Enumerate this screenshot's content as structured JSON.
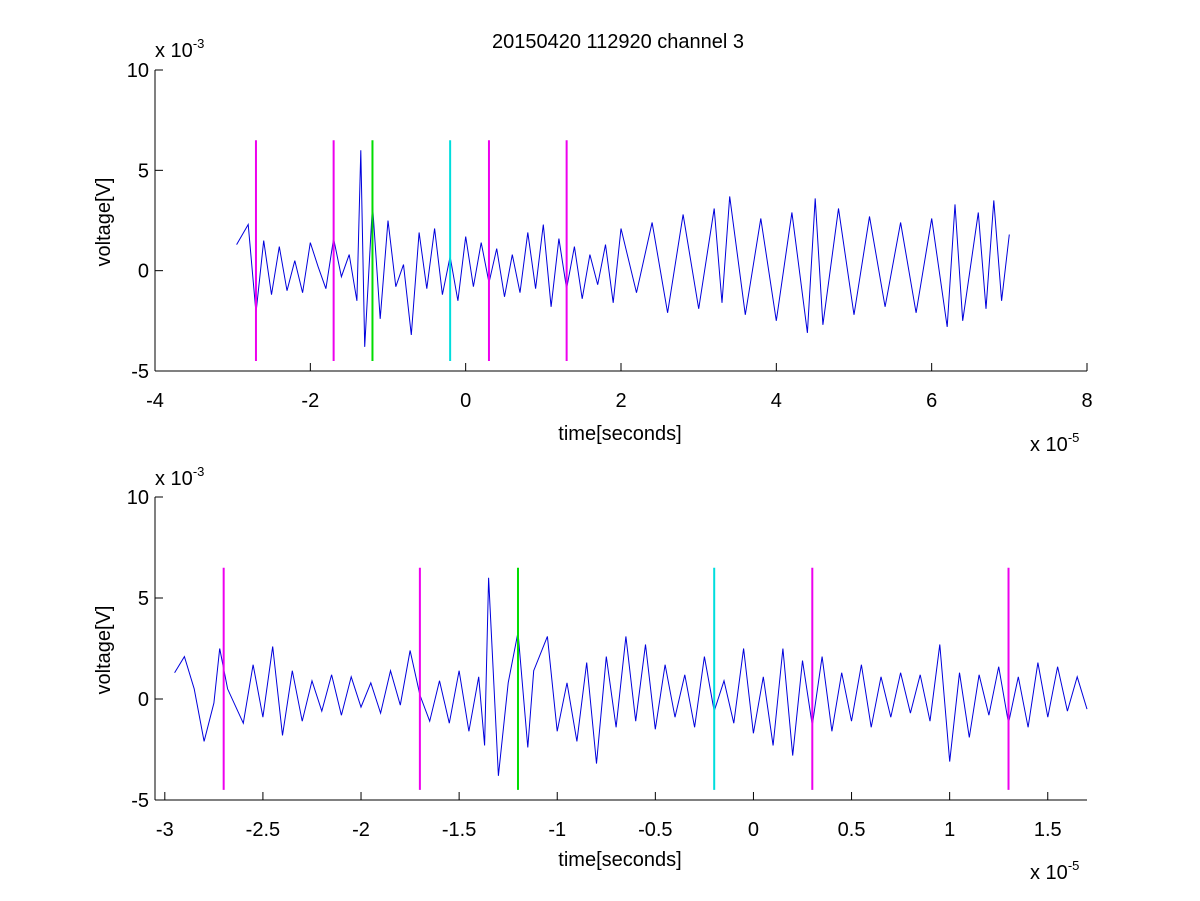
{
  "figure": {
    "title": "20150420 112920 channel 3"
  },
  "chart_data": [
    {
      "type": "line",
      "title": "20150420 112920 channel 3",
      "xlabel": "time[seconds]",
      "ylabel": "voltage[V]",
      "x_exponent_label": "x 10",
      "x_exponent": "-5",
      "y_exponent_label": "x 10",
      "y_exponent": "-3",
      "xlim": [
        -4e-05,
        8e-05
      ],
      "ylim": [
        -0.005,
        0.01
      ],
      "xticks": [
        -4e-05,
        -2e-05,
        0,
        2e-05,
        4e-05,
        6e-05,
        8e-05
      ],
      "xtick_labels": [
        "-4",
        "-2",
        "0",
        "2",
        "4",
        "6",
        "8"
      ],
      "yticks": [
        -0.005,
        0,
        0.005,
        0.01
      ],
      "ytick_labels": [
        "-5",
        "0",
        "5",
        "10"
      ],
      "grid": false,
      "series": [
        {
          "color": "#0000dd",
          "x": [
            -2.95e-05,
            -2.8e-05,
            -2.7e-05,
            -2.6e-05,
            -2.5e-05,
            -2.4e-05,
            -2.3e-05,
            -2.2e-05,
            -2.1e-05,
            -2e-05,
            -1.9e-05,
            -1.8e-05,
            -1.7e-05,
            -1.6e-05,
            -1.5e-05,
            -1.4e-05,
            -1.35e-05,
            -1.3e-05,
            -1.2e-05,
            -1.1e-05,
            -1e-05,
            -9e-06,
            -8e-06,
            -7e-06,
            -6e-06,
            -5e-06,
            -4e-06,
            -3e-06,
            -2e-06,
            -1e-06,
            0,
            1e-06,
            2e-06,
            3e-06,
            4e-06,
            5e-06,
            6e-06,
            7e-06,
            8e-06,
            9e-06,
            1e-05,
            1.1e-05,
            1.2e-05,
            1.3e-05,
            1.4e-05,
            1.5e-05,
            1.6e-05,
            1.7e-05,
            1.8e-05,
            1.9e-05,
            2e-05,
            2.2e-05,
            2.4e-05,
            2.6e-05,
            2.8e-05,
            3e-05,
            3.2e-05,
            3.3e-05,
            3.4e-05,
            3.6e-05,
            3.8e-05,
            4e-05,
            4.2e-05,
            4.4e-05,
            4.5e-05,
            4.6e-05,
            4.8e-05,
            5e-05,
            5.2e-05,
            5.4e-05,
            5.6e-05,
            5.8e-05,
            6e-05,
            6.2e-05,
            6.3e-05,
            6.4e-05,
            6.6e-05,
            6.7e-05,
            6.8e-05,
            6.9e-05,
            7e-05
          ],
          "y": [
            0.0013,
            0.0023,
            -0.0021,
            0.0015,
            -0.0012,
            0.0012,
            -0.001,
            0.0005,
            -0.0011,
            0.0014,
            0.0002,
            -0.0009,
            0.0016,
            -0.0003,
            0.0008,
            -0.0015,
            0.006,
            -0.0038,
            0.0033,
            -0.0024,
            0.0025,
            -0.0008,
            0.0003,
            -0.0032,
            0.0019,
            -0.0009,
            0.0021,
            -0.0012,
            0.0007,
            -0.0015,
            0.0017,
            -0.0008,
            0.0014,
            -0.0006,
            0.0011,
            -0.0013,
            0.0008,
            -0.0011,
            0.0019,
            -0.0009,
            0.0023,
            -0.0018,
            0.0016,
            -0.0009,
            0.0012,
            -0.0014,
            0.0008,
            -0.0007,
            0.0013,
            -0.0016,
            0.0021,
            -0.0011,
            0.0024,
            -0.0021,
            0.0028,
            -0.0019,
            0.0031,
            -0.0016,
            0.0037,
            -0.0022,
            0.0026,
            -0.0025,
            0.0029,
            -0.0031,
            0.0036,
            -0.0027,
            0.0031,
            -0.0022,
            0.0027,
            -0.0018,
            0.0024,
            -0.0021,
            0.0026,
            -0.0028,
            0.0033,
            -0.0025,
            0.0029,
            -0.0019,
            0.0035,
            -0.0015,
            0.0018
          ]
        }
      ],
      "markers": [
        {
          "x": -2.7e-05,
          "color": "#ee00ee"
        },
        {
          "x": -1.7e-05,
          "color": "#ee00ee"
        },
        {
          "x": -1.2e-05,
          "color": "#00dd00"
        },
        {
          "x": -2e-06,
          "color": "#00dddd"
        },
        {
          "x": 3e-06,
          "color": "#ee00ee"
        },
        {
          "x": 1.3e-05,
          "color": "#ee00ee"
        }
      ],
      "marker_range": [
        -0.0045,
        0.0065
      ]
    },
    {
      "type": "line",
      "title": "",
      "xlabel": "time[seconds]",
      "ylabel": "voltage[V]",
      "x_exponent_label": "x 10",
      "x_exponent": "-5",
      "y_exponent_label": "x 10",
      "y_exponent": "-3",
      "xlim": [
        -3.05e-05,
        1.7e-05
      ],
      "ylim": [
        -0.005,
        0.01
      ],
      "xticks": [
        -3e-05,
        -2.5e-05,
        -2e-05,
        -1.5e-05,
        -1e-05,
        -5e-06,
        0,
        5e-06,
        1e-05,
        1.5e-05
      ],
      "xtick_labels": [
        "-3",
        "-2.5",
        "-2",
        "-1.5",
        "-1",
        "-0.5",
        "0",
        "0.5",
        "1",
        "1.5"
      ],
      "yticks": [
        -0.005,
        0,
        0.005,
        0.01
      ],
      "ytick_labels": [
        "-5",
        "0",
        "5",
        "10"
      ],
      "grid": false,
      "series": [
        {
          "color": "#0000dd",
          "x": [
            -2.95e-05,
            -2.9e-05,
            -2.85e-05,
            -2.8e-05,
            -2.75e-05,
            -2.72e-05,
            -2.68e-05,
            -2.6e-05,
            -2.55e-05,
            -2.5e-05,
            -2.45e-05,
            -2.4e-05,
            -2.35e-05,
            -2.3e-05,
            -2.25e-05,
            -2.2e-05,
            -2.15e-05,
            -2.1e-05,
            -2.05e-05,
            -2e-05,
            -1.95e-05,
            -1.9e-05,
            -1.85e-05,
            -1.8e-05,
            -1.75e-05,
            -1.7e-05,
            -1.65e-05,
            -1.6e-05,
            -1.55e-05,
            -1.5e-05,
            -1.45e-05,
            -1.4e-05,
            -1.37e-05,
            -1.35e-05,
            -1.3e-05,
            -1.25e-05,
            -1.2e-05,
            -1.15e-05,
            -1.12e-05,
            -1.05e-05,
            -1e-05,
            -9.5e-06,
            -9e-06,
            -8.5e-06,
            -8e-06,
            -7.5e-06,
            -7e-06,
            -6.5e-06,
            -6e-06,
            -5.5e-06,
            -5e-06,
            -4.5e-06,
            -4e-06,
            -3.5e-06,
            -3e-06,
            -2.5e-06,
            -2e-06,
            -1.5e-06,
            -1e-06,
            -5e-07,
            0,
            5e-07,
            1e-06,
            1.5e-06,
            2e-06,
            2.5e-06,
            3e-06,
            3.5e-06,
            4e-06,
            4.5e-06,
            5e-06,
            5.5e-06,
            6e-06,
            6.5e-06,
            7e-06,
            7.5e-06,
            8e-06,
            8.5e-06,
            9e-06,
            9.5e-06,
            1e-05,
            1.05e-05,
            1.1e-05,
            1.15e-05,
            1.2e-05,
            1.25e-05,
            1.3e-05,
            1.35e-05,
            1.4e-05,
            1.45e-05,
            1.5e-05,
            1.55e-05,
            1.6e-05,
            1.65e-05,
            1.7e-05
          ],
          "y": [
            0.0013,
            0.0021,
            0.0005,
            -0.0021,
            -0.0002,
            0.0025,
            0.0005,
            -0.0012,
            0.0017,
            -0.0009,
            0.0026,
            -0.0018,
            0.0014,
            -0.0011,
            0.0009,
            -0.0006,
            0.0012,
            -0.0008,
            0.0011,
            -0.0004,
            0.0008,
            -0.0007,
            0.0014,
            -0.0003,
            0.0024,
            0.0002,
            -0.0011,
            0.0009,
            -0.0012,
            0.0014,
            -0.0016,
            0.0011,
            -0.0023,
            0.006,
            -0.0038,
            0.0008,
            0.0033,
            -0.0024,
            0.0014,
            0.0031,
            -0.0016,
            0.0008,
            -0.0021,
            0.0018,
            -0.0032,
            0.0021,
            -0.0014,
            0.0031,
            -0.0011,
            0.0027,
            -0.0015,
            0.0017,
            -0.0009,
            0.0012,
            -0.0014,
            0.0021,
            -0.0006,
            0.0009,
            -0.0012,
            0.0025,
            -0.0017,
            0.0011,
            -0.0023,
            0.0025,
            -0.0028,
            0.0019,
            -0.0013,
            0.0021,
            -0.0016,
            0.0013,
            -0.0011,
            0.0017,
            -0.0014,
            0.0011,
            -0.0009,
            0.0013,
            -0.0007,
            0.0012,
            -0.0011,
            0.0027,
            -0.0031,
            0.0013,
            -0.0019,
            0.0012,
            -0.0008,
            0.0016,
            -0.0012,
            0.0011,
            -0.0014,
            0.0018,
            -0.0009,
            0.0016,
            -0.0006,
            0.0011,
            -0.0005
          ]
        }
      ],
      "markers": [
        {
          "x": -2.7e-05,
          "color": "#ee00ee"
        },
        {
          "x": -1.7e-05,
          "color": "#ee00ee"
        },
        {
          "x": -1.2e-05,
          "color": "#00dd00"
        },
        {
          "x": -2e-06,
          "color": "#00dddd"
        },
        {
          "x": 3e-06,
          "color": "#ee00ee"
        },
        {
          "x": 1.3e-05,
          "color": "#ee00ee"
        }
      ],
      "marker_range": [
        -0.0045,
        0.0065
      ]
    }
  ]
}
